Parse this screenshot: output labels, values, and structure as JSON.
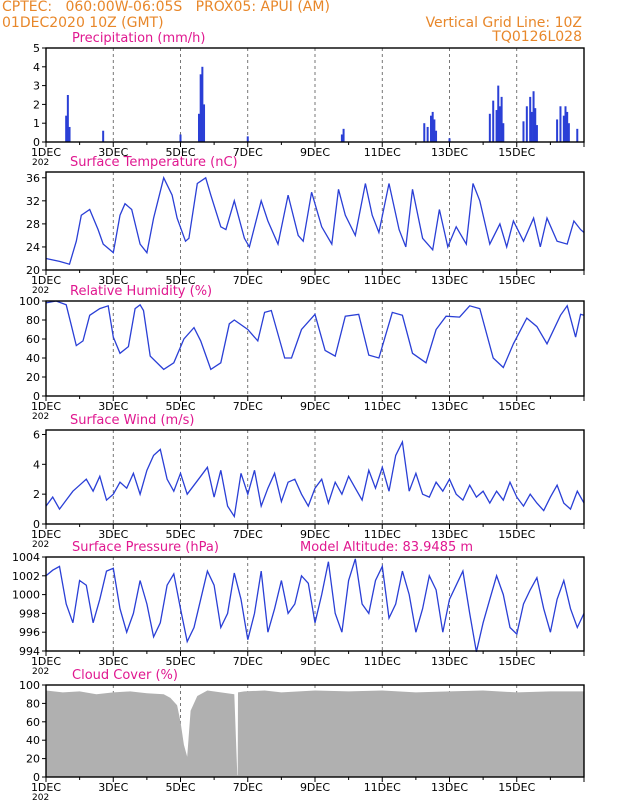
{
  "header": {
    "line1_left": "CPTEC:   060:00W-06:05S   PROX05: APUI (AM)",
    "line2_left": "01DEC2020 10Z (GMT)",
    "line2_right": "Vertical Grid Line: 10Z",
    "line3_right": "TQ0126L028"
  },
  "colors": {
    "series": "#2a3fd6",
    "title": "#e01890",
    "header": "#e8872a",
    "cloud": "#b0b0b0"
  },
  "x_axis_labels": [
    "1DEC",
    "3DEC",
    "5DEC",
    "7DEC",
    "9DEC",
    "11DEC",
    "13DEC",
    "15DEC"
  ],
  "x_stub_label": "202",
  "chart_data": [
    {
      "type": "bar",
      "title": "Precipitation (mm/h)",
      "ylim": [
        0,
        5
      ],
      "yticks": [
        0,
        1,
        2,
        3,
        4,
        5
      ],
      "x_unit": "days since 01DEC2020 10Z",
      "x": [
        0.6,
        0.65,
        0.7,
        1.7,
        4.0,
        4.55,
        4.6,
        4.65,
        4.7,
        6.0,
        8.8,
        8.85,
        11.25,
        11.35,
        11.45,
        11.5,
        11.55,
        11.6,
        12.0,
        13.2,
        13.3,
        13.4,
        13.45,
        13.5,
        13.55,
        13.6,
        14.2,
        14.3,
        14.4,
        14.45,
        14.5,
        14.55,
        14.6,
        15.2,
        15.3,
        15.4,
        15.45,
        15.5,
        15.55,
        15.8
      ],
      "values": [
        1.4,
        2.5,
        0.8,
        0.6,
        0.4,
        1.5,
        3.6,
        4.0,
        2.0,
        0.3,
        0.4,
        0.7,
        1.0,
        0.8,
        1.4,
        1.6,
        1.2,
        0.6,
        0.2,
        1.5,
        2.2,
        1.7,
        3.0,
        1.9,
        2.4,
        1.0,
        1.1,
        1.9,
        2.4,
        1.6,
        2.7,
        1.8,
        0.9,
        1.2,
        1.9,
        1.4,
        1.9,
        1.6,
        1.0,
        0.7
      ]
    },
    {
      "type": "line",
      "title": "Surface Temperature (nC)",
      "ylim": [
        20,
        37
      ],
      "yticks": [
        20,
        24,
        28,
        32,
        36
      ],
      "x": [
        0,
        0.4,
        0.7,
        0.9,
        1.05,
        1.3,
        1.55,
        1.7,
        1.9,
        2.0,
        2.2,
        2.35,
        2.55,
        2.8,
        3.0,
        3.2,
        3.5,
        3.75,
        3.9,
        4.15,
        4.25,
        4.5,
        4.75,
        4.9,
        5.2,
        5.35,
        5.6,
        5.9,
        6.05,
        6.4,
        6.6,
        6.9,
        7.2,
        7.5,
        7.65,
        7.9,
        8.2,
        8.5,
        8.7,
        8.9,
        9.2,
        9.5,
        9.7,
        9.9,
        10.2,
        10.5,
        10.7,
        10.9,
        11.2,
        11.5,
        11.7,
        11.95,
        12.2,
        12.5,
        12.7,
        12.9,
        13.2,
        13.5,
        13.7,
        13.9,
        14.2,
        14.5,
        14.7,
        14.9,
        15.2,
        15.5,
        15.7,
        15.9,
        16.0
      ],
      "values": [
        22.0,
        21.5,
        21.0,
        25.0,
        29.5,
        30.5,
        27.0,
        24.5,
        23.5,
        23.0,
        29.5,
        31.5,
        30.5,
        24.5,
        23.0,
        29.0,
        36.0,
        33.0,
        29.0,
        25.0,
        25.5,
        35.0,
        36.0,
        33.0,
        27.5,
        27.0,
        32.0,
        25.5,
        24.0,
        32.0,
        28.5,
        24.5,
        33.0,
        26.0,
        25.0,
        33.5,
        27.5,
        24.5,
        34.0,
        29.5,
        26.0,
        35.0,
        29.5,
        26.5,
        35.0,
        27.0,
        24.0,
        34.0,
        25.5,
        23.5,
        30.5,
        24.0,
        27.5,
        24.5,
        35.0,
        32.0,
        24.5,
        28.0,
        24.0,
        28.5,
        25.0,
        29.0,
        24.0,
        29.0,
        25.0,
        24.5,
        28.5,
        27.0,
        26.5
      ]
    },
    {
      "type": "line",
      "title": "Relative Humidity (%)",
      "ylim": [
        0,
        100
      ],
      "yticks": [
        0,
        20,
        40,
        60,
        80,
        100
      ],
      "x": [
        0,
        0.3,
        0.6,
        0.75,
        0.9,
        1.1,
        1.3,
        1.6,
        1.85,
        2.0,
        2.2,
        2.45,
        2.65,
        2.8,
        2.9,
        3.1,
        3.5,
        3.8,
        4.1,
        4.4,
        4.6,
        4.9,
        5.2,
        5.45,
        5.6,
        6.0,
        6.3,
        6.5,
        6.7,
        7.1,
        7.3,
        7.6,
        8.0,
        8.3,
        8.6,
        8.9,
        9.3,
        9.6,
        9.9,
        10.3,
        10.6,
        10.9,
        11.3,
        11.6,
        11.9,
        12.3,
        12.6,
        12.9,
        13.3,
        13.6,
        13.9,
        14.3,
        14.6,
        14.9,
        15.3,
        15.5,
        15.75,
        15.9,
        16.0
      ],
      "values": [
        98,
        100,
        96,
        75,
        53,
        58,
        85,
        92,
        95,
        62,
        45,
        52,
        92,
        96,
        90,
        42,
        28,
        35,
        60,
        72,
        58,
        28,
        35,
        76,
        80,
        70,
        58,
        88,
        90,
        40,
        40,
        70,
        86,
        48,
        42,
        84,
        86,
        43,
        40,
        88,
        85,
        45,
        35,
        70,
        84,
        83,
        95,
        92,
        40,
        30,
        55,
        82,
        73,
        55,
        85,
        95,
        62,
        86,
        85
      ]
    },
    {
      "type": "line",
      "title": "Surface Wind (m/s)",
      "ylim": [
        0,
        6.3
      ],
      "yticks": [
        0,
        2,
        4,
        6
      ],
      "x": [
        0,
        0.2,
        0.4,
        0.6,
        0.8,
        1.0,
        1.2,
        1.4,
        1.6,
        1.8,
        2.0,
        2.2,
        2.4,
        2.6,
        2.8,
        3.0,
        3.2,
        3.4,
        3.6,
        3.8,
        4.0,
        4.2,
        4.4,
        4.6,
        4.8,
        5.0,
        5.2,
        5.4,
        5.6,
        5.8,
        6.0,
        6.2,
        6.4,
        6.6,
        6.8,
        7.0,
        7.2,
        7.4,
        7.6,
        7.8,
        8.0,
        8.2,
        8.4,
        8.6,
        8.8,
        9.0,
        9.2,
        9.4,
        9.6,
        9.8,
        10.0,
        10.2,
        10.4,
        10.6,
        10.8,
        11.0,
        11.2,
        11.4,
        11.6,
        11.8,
        12.0,
        12.2,
        12.4,
        12.6,
        12.8,
        13.0,
        13.2,
        13.4,
        13.6,
        13.8,
        14.0,
        14.2,
        14.4,
        14.6,
        14.8,
        15.0,
        15.2,
        15.4,
        15.6,
        15.8,
        16.0
      ],
      "values": [
        1.2,
        1.8,
        1.0,
        1.6,
        2.2,
        2.6,
        3.0,
        2.2,
        3.2,
        1.6,
        2.0,
        2.8,
        2.4,
        3.4,
        2.0,
        3.6,
        4.6,
        5.0,
        3.0,
        2.2,
        3.4,
        2.0,
        2.6,
        3.2,
        3.8,
        1.8,
        3.6,
        1.2,
        0.5,
        3.4,
        2.0,
        3.6,
        1.2,
        2.4,
        3.4,
        1.5,
        2.8,
        3.0,
        2.0,
        1.2,
        2.4,
        3.0,
        1.4,
        2.8,
        2.0,
        3.2,
        2.4,
        1.6,
        3.6,
        2.4,
        3.8,
        2.2,
        4.6,
        5.5,
        2.2,
        3.4,
        2.0,
        1.8,
        2.8,
        2.2,
        3.0,
        2.0,
        1.6,
        2.6,
        1.8,
        2.2,
        1.4,
        2.2,
        1.6,
        2.8,
        1.8,
        1.2,
        2.0,
        1.4,
        0.9,
        1.8,
        2.6,
        1.4,
        1.0,
        2.2,
        1.4
      ]
    },
    {
      "type": "line",
      "title": "Surface Pressure (hPa)",
      "annotation": "Model Altitude: 83.9485 m",
      "ylim": [
        994,
        1004
      ],
      "yticks": [
        994,
        996,
        998,
        1000,
        1002,
        1004
      ],
      "x": [
        0,
        0.2,
        0.4,
        0.6,
        0.8,
        1.0,
        1.2,
        1.4,
        1.6,
        1.8,
        2.0,
        2.2,
        2.4,
        2.6,
        2.8,
        3.0,
        3.2,
        3.4,
        3.6,
        3.8,
        4.0,
        4.2,
        4.4,
        4.6,
        4.8,
        5.0,
        5.2,
        5.4,
        5.6,
        5.8,
        6.0,
        6.2,
        6.4,
        6.6,
        6.8,
        7.0,
        7.2,
        7.4,
        7.6,
        7.8,
        8.0,
        8.2,
        8.4,
        8.6,
        8.8,
        9.0,
        9.2,
        9.4,
        9.6,
        9.8,
        10.0,
        10.2,
        10.4,
        10.6,
        10.8,
        11.0,
        11.2,
        11.4,
        11.6,
        11.8,
        12.0,
        12.2,
        12.4,
        12.6,
        12.8,
        13.0,
        13.2,
        13.4,
        13.6,
        13.8,
        14.0,
        14.2,
        14.4,
        14.6,
        14.8,
        15.0,
        15.2,
        15.4,
        15.6,
        15.8,
        16.0
      ],
      "values": [
        1002.0,
        1002.6,
        1003.0,
        999.0,
        997.0,
        1001.5,
        1001.0,
        997.0,
        999.5,
        1002.5,
        1002.8,
        998.5,
        996.0,
        998.0,
        1001.5,
        999.0,
        995.5,
        997.0,
        1001.0,
        1002.2,
        998.5,
        995.0,
        996.5,
        999.5,
        1002.5,
        1001.0,
        996.5,
        998.0,
        1002.3,
        999.5,
        995.2,
        998.0,
        1002.5,
        996.0,
        998.5,
        1001.5,
        998.0,
        999.0,
        1002.0,
        1001.2,
        997.0,
        1000.0,
        1003.5,
        998.0,
        996.0,
        1001.5,
        1003.8,
        999.0,
        998.0,
        1001.5,
        1003.0,
        997.5,
        999.0,
        1002.5,
        1000.0,
        996.0,
        998.5,
        1002.0,
        1000.5,
        996.0,
        999.5,
        1001.0,
        1002.5,
        998.0,
        993.9,
        997.0,
        999.5,
        1002.0,
        1000.0,
        996.5,
        995.8,
        999.0,
        1000.5,
        1001.8,
        998.5,
        996.0,
        999.5,
        1001.5,
        998.5,
        996.5,
        998.0
      ]
    },
    {
      "type": "area",
      "title": "Cloud Cover (%)",
      "ylim": [
        0,
        100
      ],
      "yticks": [
        0,
        20,
        40,
        60,
        80,
        100
      ],
      "x": [
        0,
        0.5,
        1.0,
        1.5,
        2.0,
        2.5,
        3.0,
        3.5,
        3.7,
        3.9,
        4.0,
        4.1,
        4.2,
        4.3,
        4.5,
        4.8,
        5.2,
        5.6,
        5.69,
        5.7,
        5.71,
        5.9,
        6.5,
        7.0,
        8.0,
        9.0,
        10.0,
        11.0,
        12.0,
        13.0,
        14.0,
        15.0,
        16.0
      ],
      "values": [
        94,
        92,
        93,
        90,
        92,
        93,
        91,
        90,
        86,
        78,
        60,
        35,
        22,
        72,
        88,
        94,
        92,
        90,
        2,
        2,
        92,
        93,
        94,
        92,
        94,
        93,
        94,
        92,
        93,
        94,
        92,
        93,
        93
      ]
    }
  ]
}
